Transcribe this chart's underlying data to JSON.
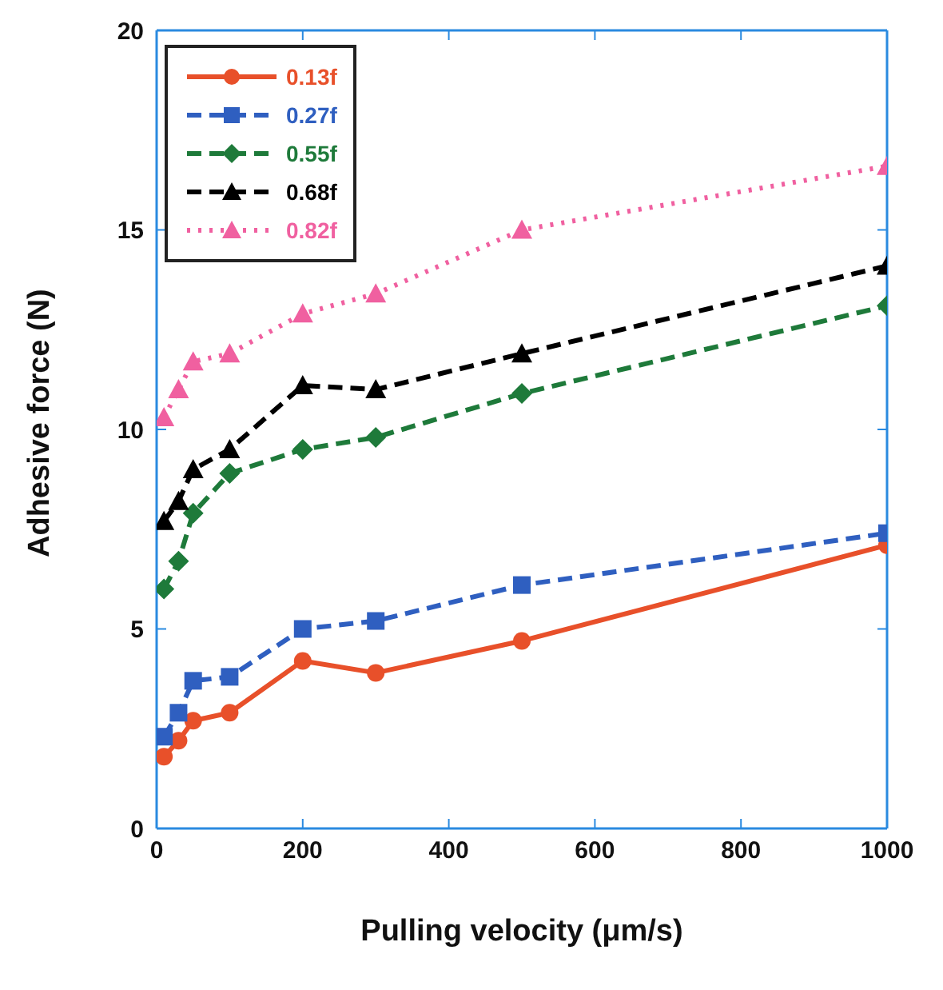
{
  "chart_data": {
    "type": "line",
    "xlabel": "Pulling velocity (μm/s)",
    "ylabel": "Adhesive force (N)",
    "x": [
      10,
      30,
      50,
      100,
      200,
      300,
      500,
      1000
    ],
    "xlim": [
      0,
      1000
    ],
    "xticks": [
      0,
      200,
      400,
      600,
      800,
      1000
    ],
    "ylim": [
      0,
      20
    ],
    "yticks": [
      0,
      5,
      10,
      15,
      20
    ],
    "legend": "top left",
    "series": [
      {
        "name": "0.13f",
        "color": "#e8502a",
        "marker": "circle",
        "line_style": "solid",
        "values": [
          1.8,
          2.2,
          2.7,
          2.9,
          4.2,
          3.9,
          4.7,
          7.1
        ]
      },
      {
        "name": "0.27f",
        "color": "#2f5fc0",
        "marker": "square",
        "line_style": "dashed",
        "values": [
          2.3,
          2.9,
          3.7,
          3.8,
          5.0,
          5.2,
          6.1,
          7.4
        ]
      },
      {
        "name": "0.55f",
        "color": "#1e7a3a",
        "marker": "diamond",
        "line_style": "dashed",
        "values": [
          6.0,
          6.7,
          7.9,
          8.9,
          9.5,
          9.8,
          10.9,
          13.1
        ]
      },
      {
        "name": "0.68f",
        "color": "#000000",
        "marker": "triangle",
        "line_style": "dashed",
        "values": [
          7.7,
          8.2,
          9.0,
          9.5,
          11.1,
          11.0,
          11.9,
          14.1
        ]
      },
      {
        "name": "0.82f",
        "color": "#f060a0",
        "marker": "triangle",
        "line_style": "dotted",
        "values": [
          10.3,
          11.0,
          11.7,
          11.9,
          12.9,
          13.4,
          15.0,
          16.6
        ]
      }
    ]
  }
}
